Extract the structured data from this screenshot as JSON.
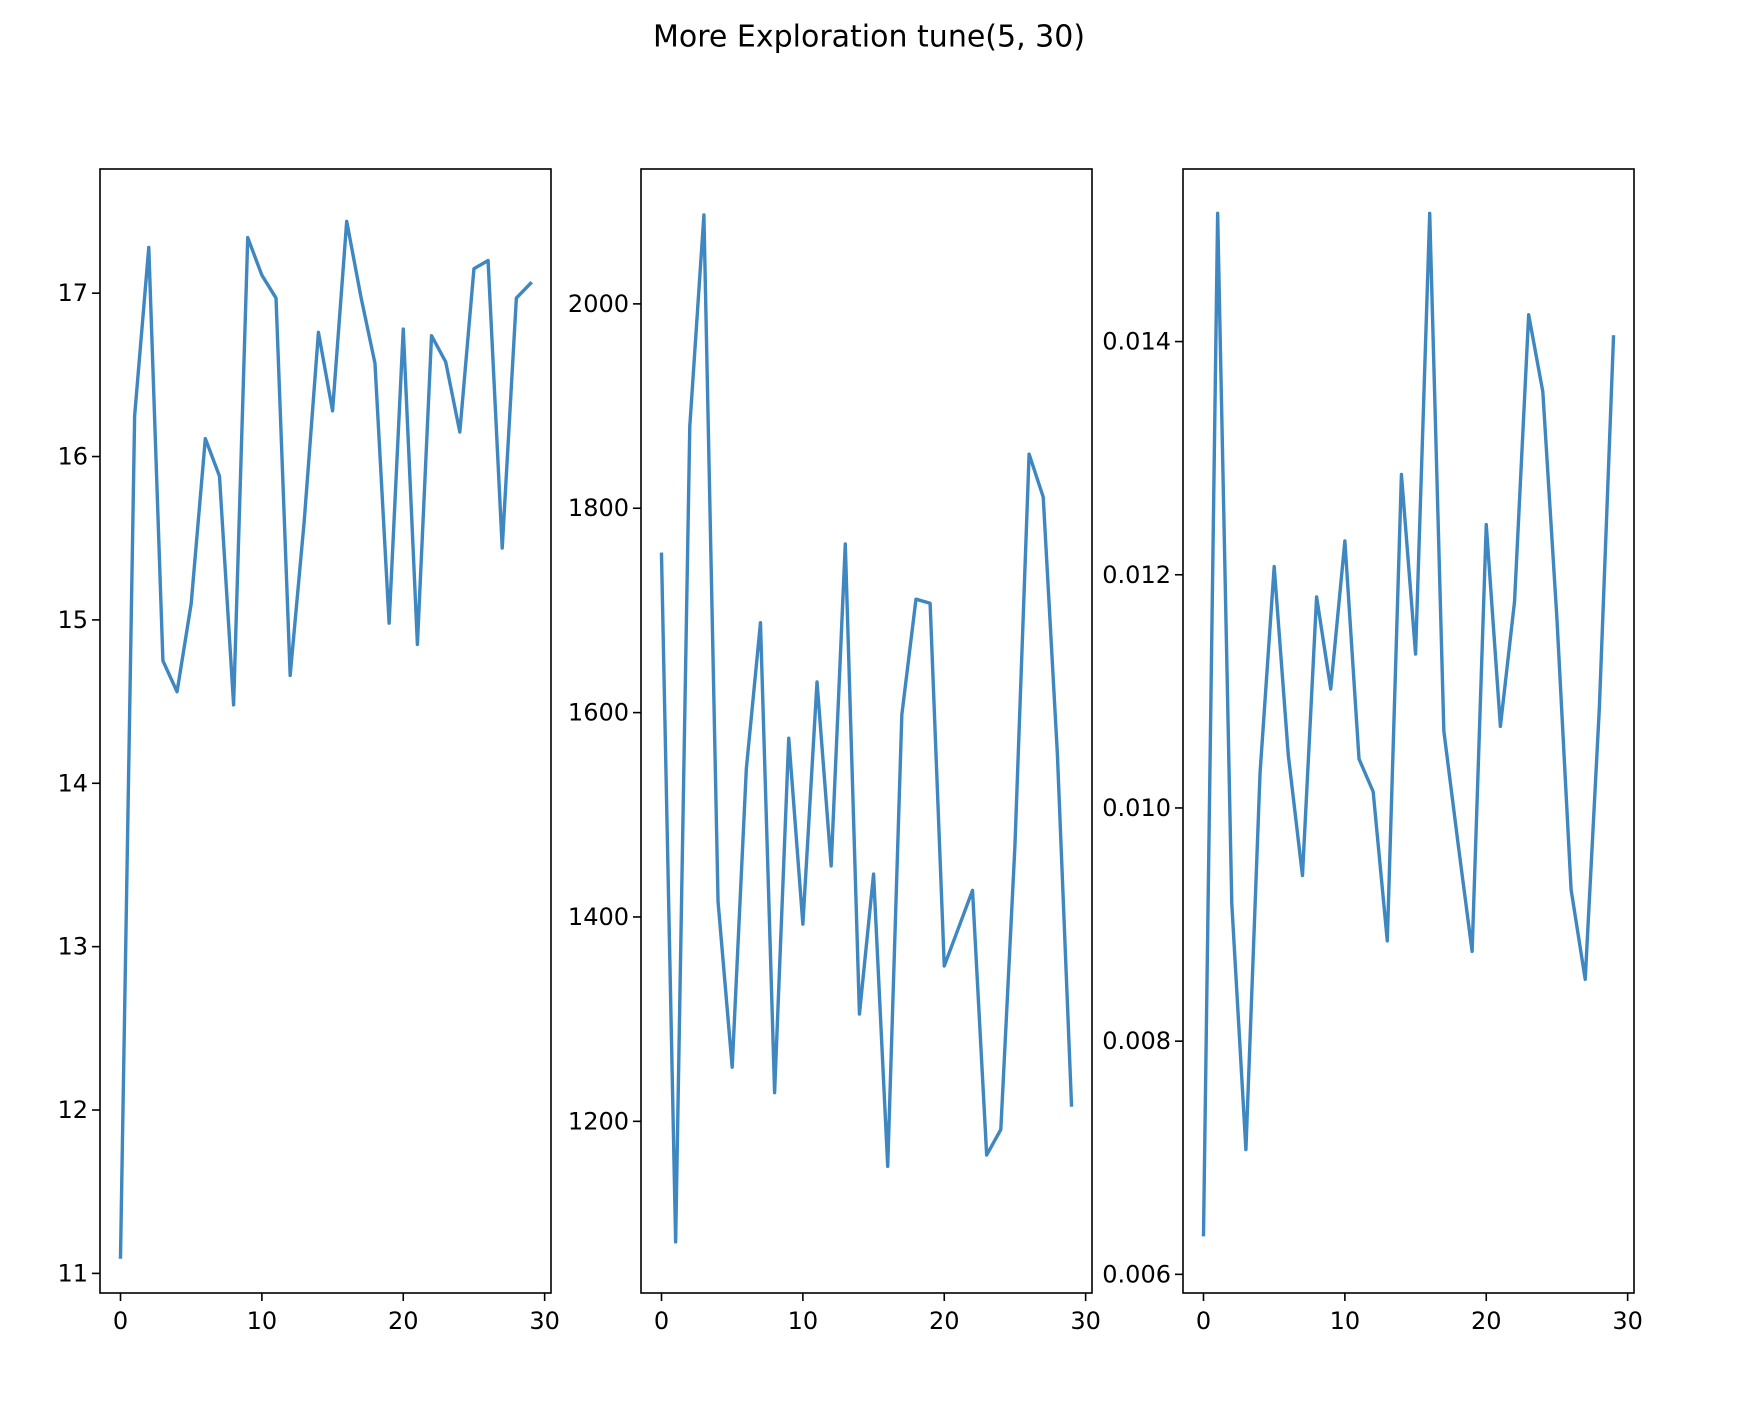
{
  "figure": {
    "title": "More Exploration tune(5, 30)"
  },
  "colors": {
    "line": "#3f87c0",
    "axes": "#000000",
    "background": "#ffffff"
  },
  "chart_data": [
    {
      "type": "line",
      "title": "",
      "xlabel": "",
      "ylabel": "",
      "grid": false,
      "xlim": [
        -1.45,
        30.45
      ],
      "ylim": [
        10.88,
        17.76
      ],
      "xticks": [
        0,
        10,
        20,
        30
      ],
      "xtick_labels": [
        "0",
        "10",
        "20",
        "30"
      ],
      "yticks": [
        11,
        12,
        13,
        14,
        15,
        16,
        17
      ],
      "ytick_labels": [
        "11",
        "12",
        "13",
        "14",
        "15",
        "16",
        "17"
      ],
      "x": [
        0,
        1,
        2,
        3,
        4,
        5,
        6,
        7,
        8,
        9,
        10,
        11,
        12,
        13,
        14,
        15,
        16,
        17,
        18,
        19,
        20,
        21,
        22,
        23,
        24,
        25,
        26,
        27,
        28,
        29
      ],
      "y": [
        11.1,
        16.25,
        17.28,
        14.75,
        14.56,
        15.1,
        16.11,
        15.88,
        14.48,
        17.34,
        17.11,
        16.97,
        14.66,
        15.61,
        16.76,
        16.28,
        17.44,
        16.98,
        16.57,
        14.98,
        16.78,
        14.85,
        16.74,
        16.58,
        16.15,
        17.15,
        17.2,
        15.44,
        16.97,
        17.06
      ]
    },
    {
      "type": "line",
      "title": "",
      "xlabel": "",
      "ylabel": "",
      "grid": false,
      "xlim": [
        -1.45,
        30.45
      ],
      "ylim": [
        1032,
        2132
      ],
      "xticks": [
        0,
        10,
        20,
        30
      ],
      "xtick_labels": [
        "0",
        "10",
        "20",
        "30"
      ],
      "yticks": [
        1200,
        1400,
        1600,
        1800,
        2000
      ],
      "ytick_labels": [
        "1200",
        "1400",
        "1600",
        "1800",
        "2000"
      ],
      "x": [
        0,
        1,
        2,
        3,
        4,
        5,
        6,
        7,
        8,
        9,
        10,
        11,
        12,
        13,
        14,
        15,
        16,
        17,
        18,
        19,
        20,
        21,
        22,
        23,
        24,
        25,
        26,
        27,
        28,
        29
      ],
      "y": [
        1755,
        1082,
        1880,
        2087,
        1415,
        1253,
        1545,
        1688,
        1228,
        1575,
        1393,
        1630,
        1450,
        1765,
        1305,
        1442,
        1156,
        1598,
        1711,
        1707,
        1352,
        1389,
        1426,
        1167,
        1192,
        1470,
        1853,
        1811,
        1560,
        1216
      ]
    },
    {
      "type": "line",
      "title": "",
      "xlabel": "",
      "ylabel": "",
      "grid": false,
      "xlim": [
        -1.45,
        30.45
      ],
      "ylim": [
        0.00584,
        0.01548
      ],
      "xticks": [
        0,
        10,
        20,
        30
      ],
      "xtick_labels": [
        "0",
        "10",
        "20",
        "30"
      ],
      "yticks": [
        0.006,
        0.008,
        0.01,
        0.012,
        0.014
      ],
      "ytick_labels": [
        "0.006",
        "0.008",
        "0.010",
        "0.012",
        "0.014"
      ],
      "x": [
        0,
        1,
        2,
        3,
        4,
        5,
        6,
        7,
        8,
        9,
        10,
        11,
        12,
        13,
        14,
        15,
        16,
        17,
        18,
        19,
        20,
        21,
        22,
        23,
        24,
        25,
        26,
        27,
        28,
        29
      ],
      "y": [
        0.00634,
        0.0151,
        0.00918,
        0.00707,
        0.0103,
        0.01207,
        0.01045,
        0.00942,
        0.01181,
        0.01102,
        0.01229,
        0.01042,
        0.01014,
        0.00886,
        0.01286,
        0.01132,
        0.0151,
        0.01066,
        0.0097,
        0.00877,
        0.01243,
        0.0107,
        0.01177,
        0.01423,
        0.01357,
        0.01162,
        0.0093,
        0.00853,
        0.01086,
        0.01404
      ]
    }
  ]
}
